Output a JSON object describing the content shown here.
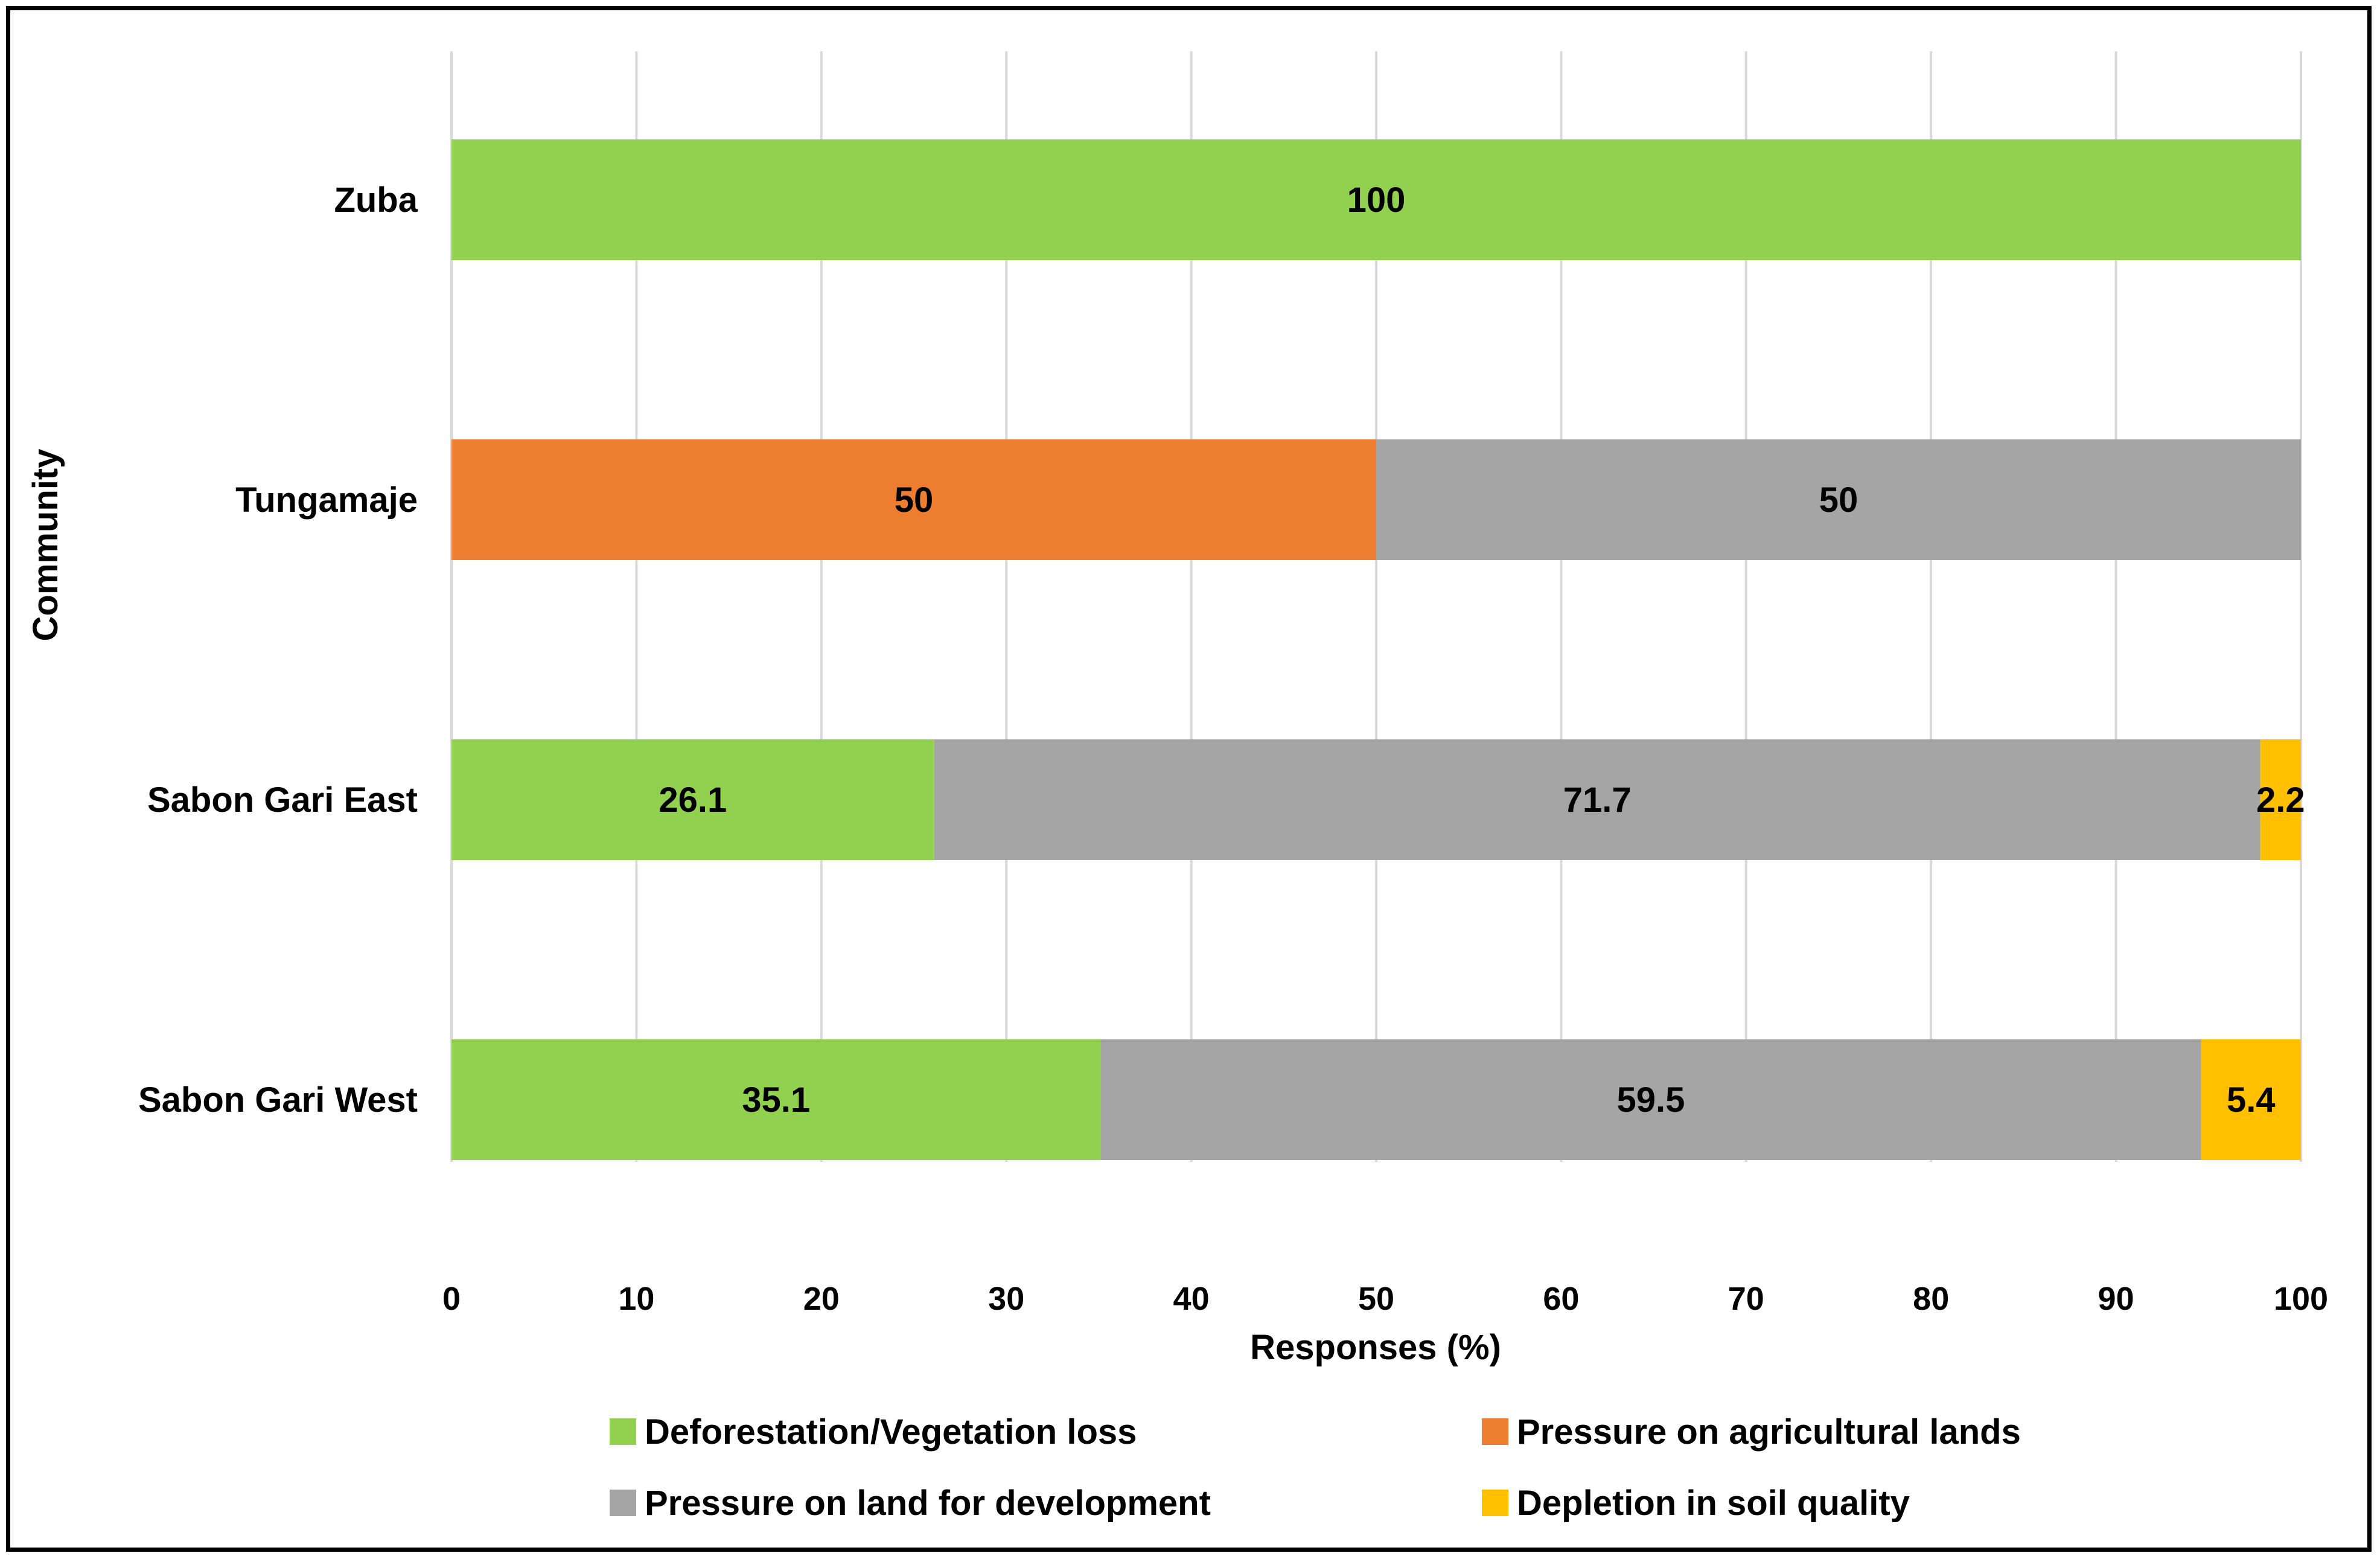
{
  "chart_data": {
    "type": "bar",
    "orientation": "horizontal",
    "stacked": true,
    "title": "",
    "xlabel": "Responses (%)",
    "ylabel": "Community",
    "xlim": [
      0,
      100
    ],
    "x_ticks": [
      0,
      10,
      20,
      30,
      40,
      50,
      60,
      70,
      80,
      90,
      100
    ],
    "grid": true,
    "legend_position": "bottom",
    "categories": [
      "Zuba",
      "Tungamaje",
      "Sabon Gari East",
      "Sabon Gari West"
    ],
    "series": [
      {
        "name": "Deforestation/Vegetation loss",
        "color": "#92d050",
        "values": [
          100,
          0,
          26.1,
          35.1
        ]
      },
      {
        "name": "Pressure on agricultural lands",
        "color": "#ed7d31",
        "values": [
          0,
          50,
          0,
          0
        ]
      },
      {
        "name": "Pressure on land for development",
        "color": "#a5a5a5",
        "values": [
          0,
          50,
          71.7,
          59.5
        ]
      },
      {
        "name": "Depletion in soil quality",
        "color": "#ffc000",
        "values": [
          0,
          0,
          2.2,
          5.4
        ]
      }
    ]
  }
}
